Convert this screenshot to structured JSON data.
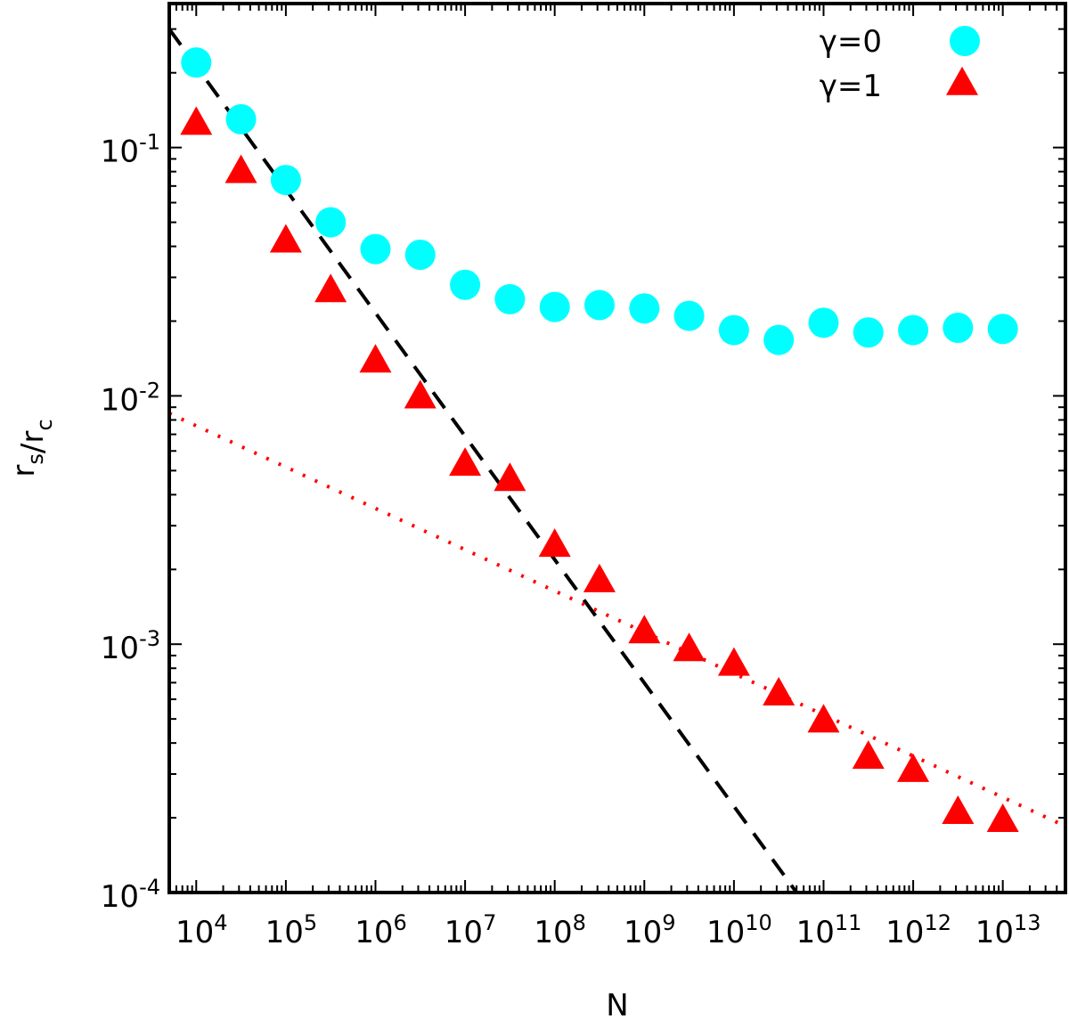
{
  "chart_data": {
    "type": "scatter",
    "title": "",
    "xlabel": "N",
    "ylabel": "r_s/r_c",
    "xscale": "log",
    "yscale": "log",
    "xlim": [
      5000,
      50000000000000.0
    ],
    "ylim": [
      0.0001,
      0.38
    ],
    "grid": false,
    "legend_position": "top-right",
    "x_ticks": [
      {
        "value": 10000.0,
        "base": "10",
        "exp": "4"
      },
      {
        "value": 100000.0,
        "base": "10",
        "exp": "5"
      },
      {
        "value": 1000000.0,
        "base": "10",
        "exp": "6"
      },
      {
        "value": 10000000.0,
        "base": "10",
        "exp": "7"
      },
      {
        "value": 100000000.0,
        "base": "10",
        "exp": "8"
      },
      {
        "value": 1000000000.0,
        "base": "10",
        "exp": "9"
      },
      {
        "value": 10000000000.0,
        "base": "10",
        "exp": "10"
      },
      {
        "value": 100000000000.0,
        "base": "10",
        "exp": "11"
      },
      {
        "value": 1000000000000.0,
        "base": "10",
        "exp": "12"
      },
      {
        "value": 10000000000000.0,
        "base": "10",
        "exp": "13"
      }
    ],
    "y_ticks": [
      {
        "value": 0.1,
        "base": "10",
        "exp": "-1"
      },
      {
        "value": 0.01,
        "base": "10",
        "exp": "-2"
      },
      {
        "value": 0.001,
        "base": "10",
        "exp": "-3"
      },
      {
        "value": 0.0001,
        "base": "10",
        "exp": "-4"
      }
    ],
    "series": [
      {
        "name": "γ=0",
        "marker": "circle",
        "color": "#00ffff",
        "x": [
          10000.0,
          31600.0,
          100000.0,
          316000.0,
          1000000.0,
          3160000.0,
          10000000.0,
          31600000.0,
          100000000.0,
          316000000.0,
          1000000000.0,
          3160000000.0,
          10000000000.0,
          31600000000.0,
          100000000000.0,
          316000000000.0,
          1000000000000.0,
          3160000000000.0,
          10000000000000.0
        ],
        "y": [
          0.22,
          0.13,
          0.074,
          0.05,
          0.039,
          0.037,
          0.028,
          0.0245,
          0.0228,
          0.0232,
          0.0225,
          0.021,
          0.0184,
          0.0168,
          0.0197,
          0.018,
          0.0184,
          0.0188,
          0.0186
        ]
      },
      {
        "name": "γ=1",
        "marker": "triangle",
        "color": "#ff0000",
        "x": [
          10000.0,
          31600.0,
          100000.0,
          316000.0,
          1000000.0,
          3160000.0,
          10000000.0,
          31600000.0,
          100000000.0,
          316000000.0,
          1000000000.0,
          3160000000.0,
          10000000000.0,
          31600000000.0,
          100000000000.0,
          316000000000.0,
          1000000000000.0,
          3160000000000.0,
          10000000000000.0
        ],
        "y": [
          0.125,
          0.08,
          0.042,
          0.0265,
          0.0138,
          0.0099,
          0.0053,
          0.0046,
          0.0025,
          0.0018,
          0.00112,
          0.00095,
          0.00083,
          0.00063,
          0.00049,
          0.00035,
          0.00031,
          0.00021,
          0.000195
        ]
      }
    ],
    "reference_lines": [
      {
        "style": "dashed",
        "color": "#000000",
        "x": [
          5000,
          50000000000.0
        ],
        "y": [
          0.3,
          0.0001
        ]
      },
      {
        "style": "dotted",
        "color": "#ff0000",
        "x": [
          5000,
          50000000000000.0
        ],
        "y": [
          0.0085,
          0.000185
        ]
      }
    ]
  }
}
